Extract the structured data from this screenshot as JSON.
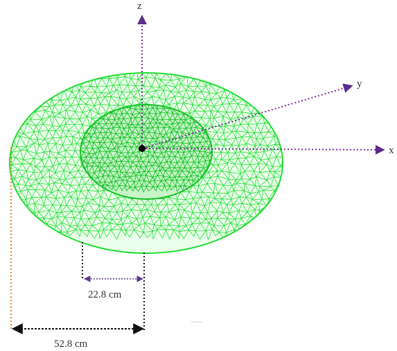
{
  "figure": {
    "axes": {
      "x_label": "x",
      "y_label": "y",
      "z_label": "z"
    },
    "dimensions": {
      "inner_diameter_label": "22.8 cm",
      "outer_diameter_label": "52.8 cm"
    },
    "colors": {
      "mesh": "#22dd33",
      "axis": "#7a2fa0",
      "outer_dimension_line": "#e08a1e",
      "dimension_line": "#1a1a1a",
      "inner_arrow": "#5b3a8c"
    }
  }
}
